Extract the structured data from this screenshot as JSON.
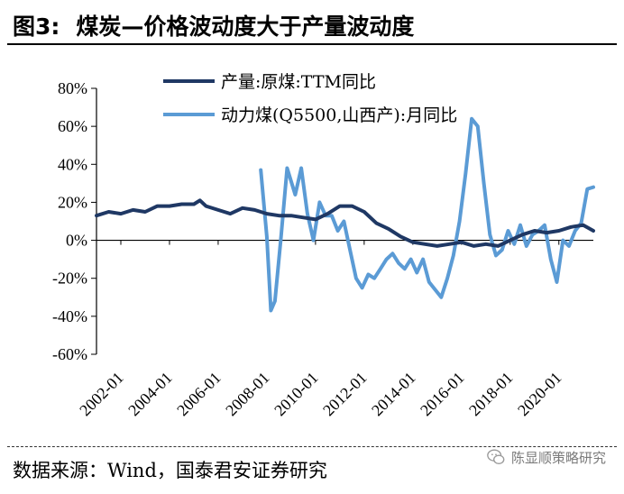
{
  "header": {
    "fig_num": "图3:",
    "title": "煤炭—价格波动度大于产量波动度"
  },
  "footer": {
    "source": "数据来源：Wind，国泰君安证券研究",
    "watermark": "陈显顺策略研究"
  },
  "colors": {
    "series1": "#1F3864",
    "series2": "#5B9BD5",
    "axis": "#000000"
  },
  "chart_data": {
    "type": "line",
    "title": "",
    "xlabel": "",
    "ylabel": "",
    "ylim": [
      -0.6,
      0.8
    ],
    "yticks": [
      0.8,
      0.6,
      0.4,
      0.2,
      0.0,
      -0.2,
      -0.4,
      -0.6
    ],
    "ytick_labels": [
      "80%",
      "60%",
      "40%",
      "20%",
      "0%",
      "-20%",
      "-40%",
      "-60%"
    ],
    "xlim": [
      "2001-01",
      "2021-06"
    ],
    "xticks": [
      "2002-01",
      "2004-01",
      "2006-01",
      "2008-01",
      "2010-01",
      "2012-01",
      "2014-01",
      "2016-01",
      "2018-01",
      "2020-01"
    ],
    "grid": false,
    "legend_position": "top-left",
    "series": [
      {
        "name": "产量:原煤:TTM同比",
        "x": [
          "2001-01",
          "2001-07",
          "2002-01",
          "2002-07",
          "2003-01",
          "2003-07",
          "2004-01",
          "2004-07",
          "2005-01",
          "2005-04",
          "2005-07",
          "2006-01",
          "2006-07",
          "2007-01",
          "2007-07",
          "2008-01",
          "2008-07",
          "2009-01",
          "2009-07",
          "2010-01",
          "2010-07",
          "2011-01",
          "2011-07",
          "2012-01",
          "2012-07",
          "2013-01",
          "2013-07",
          "2014-01",
          "2014-07",
          "2015-01",
          "2015-07",
          "2016-01",
          "2016-07",
          "2017-01",
          "2017-07",
          "2018-01",
          "2018-07",
          "2019-01",
          "2019-07",
          "2020-01",
          "2020-07",
          "2021-01",
          "2021-06"
        ],
        "y": [
          0.13,
          0.15,
          0.14,
          0.16,
          0.15,
          0.18,
          0.18,
          0.19,
          0.19,
          0.21,
          0.18,
          0.16,
          0.14,
          0.17,
          0.16,
          0.14,
          0.13,
          0.13,
          0.12,
          0.11,
          0.14,
          0.18,
          0.18,
          0.15,
          0.09,
          0.06,
          0.02,
          -0.01,
          -0.02,
          -0.03,
          -0.02,
          -0.01,
          -0.03,
          -0.02,
          -0.03,
          0.0,
          0.03,
          0.05,
          0.04,
          0.05,
          0.07,
          0.08,
          0.05
        ]
      },
      {
        "name": "动力煤(Q5500,山西产):月同比",
        "x": [
          "2007-10",
          "2008-01",
          "2008-03",
          "2008-05",
          "2008-08",
          "2008-11",
          "2009-03",
          "2009-06",
          "2009-09",
          "2009-12",
          "2010-03",
          "2010-06",
          "2010-09",
          "2010-12",
          "2011-03",
          "2011-06",
          "2011-09",
          "2011-12",
          "2012-03",
          "2012-06",
          "2012-09",
          "2012-12",
          "2013-03",
          "2013-06",
          "2013-09",
          "2013-12",
          "2014-03",
          "2014-06",
          "2014-09",
          "2014-12",
          "2015-03",
          "2015-06",
          "2015-09",
          "2015-12",
          "2016-03",
          "2016-06",
          "2016-09",
          "2016-12",
          "2017-03",
          "2017-06",
          "2017-09",
          "2017-12",
          "2018-03",
          "2018-06",
          "2018-09",
          "2018-12",
          "2019-03",
          "2019-06",
          "2019-09",
          "2019-12",
          "2020-03",
          "2020-06",
          "2020-09",
          "2020-12",
          "2021-03",
          "2021-06"
        ],
        "y": [
          0.37,
          0.02,
          -0.37,
          -0.32,
          0.02,
          0.38,
          0.24,
          0.38,
          0.14,
          0.0,
          0.2,
          0.13,
          0.13,
          0.05,
          0.1,
          -0.05,
          -0.2,
          -0.25,
          -0.18,
          -0.2,
          -0.15,
          -0.1,
          -0.07,
          -0.12,
          -0.15,
          -0.1,
          -0.17,
          -0.1,
          -0.22,
          -0.26,
          -0.3,
          -0.2,
          -0.08,
          0.1,
          0.35,
          0.64,
          0.6,
          0.3,
          0.03,
          -0.08,
          -0.05,
          0.05,
          -0.02,
          0.08,
          -0.03,
          0.03,
          0.05,
          0.08,
          -0.1,
          -0.22,
          0.0,
          -0.03,
          0.05,
          0.09,
          0.27,
          0.28
        ]
      }
    ]
  }
}
